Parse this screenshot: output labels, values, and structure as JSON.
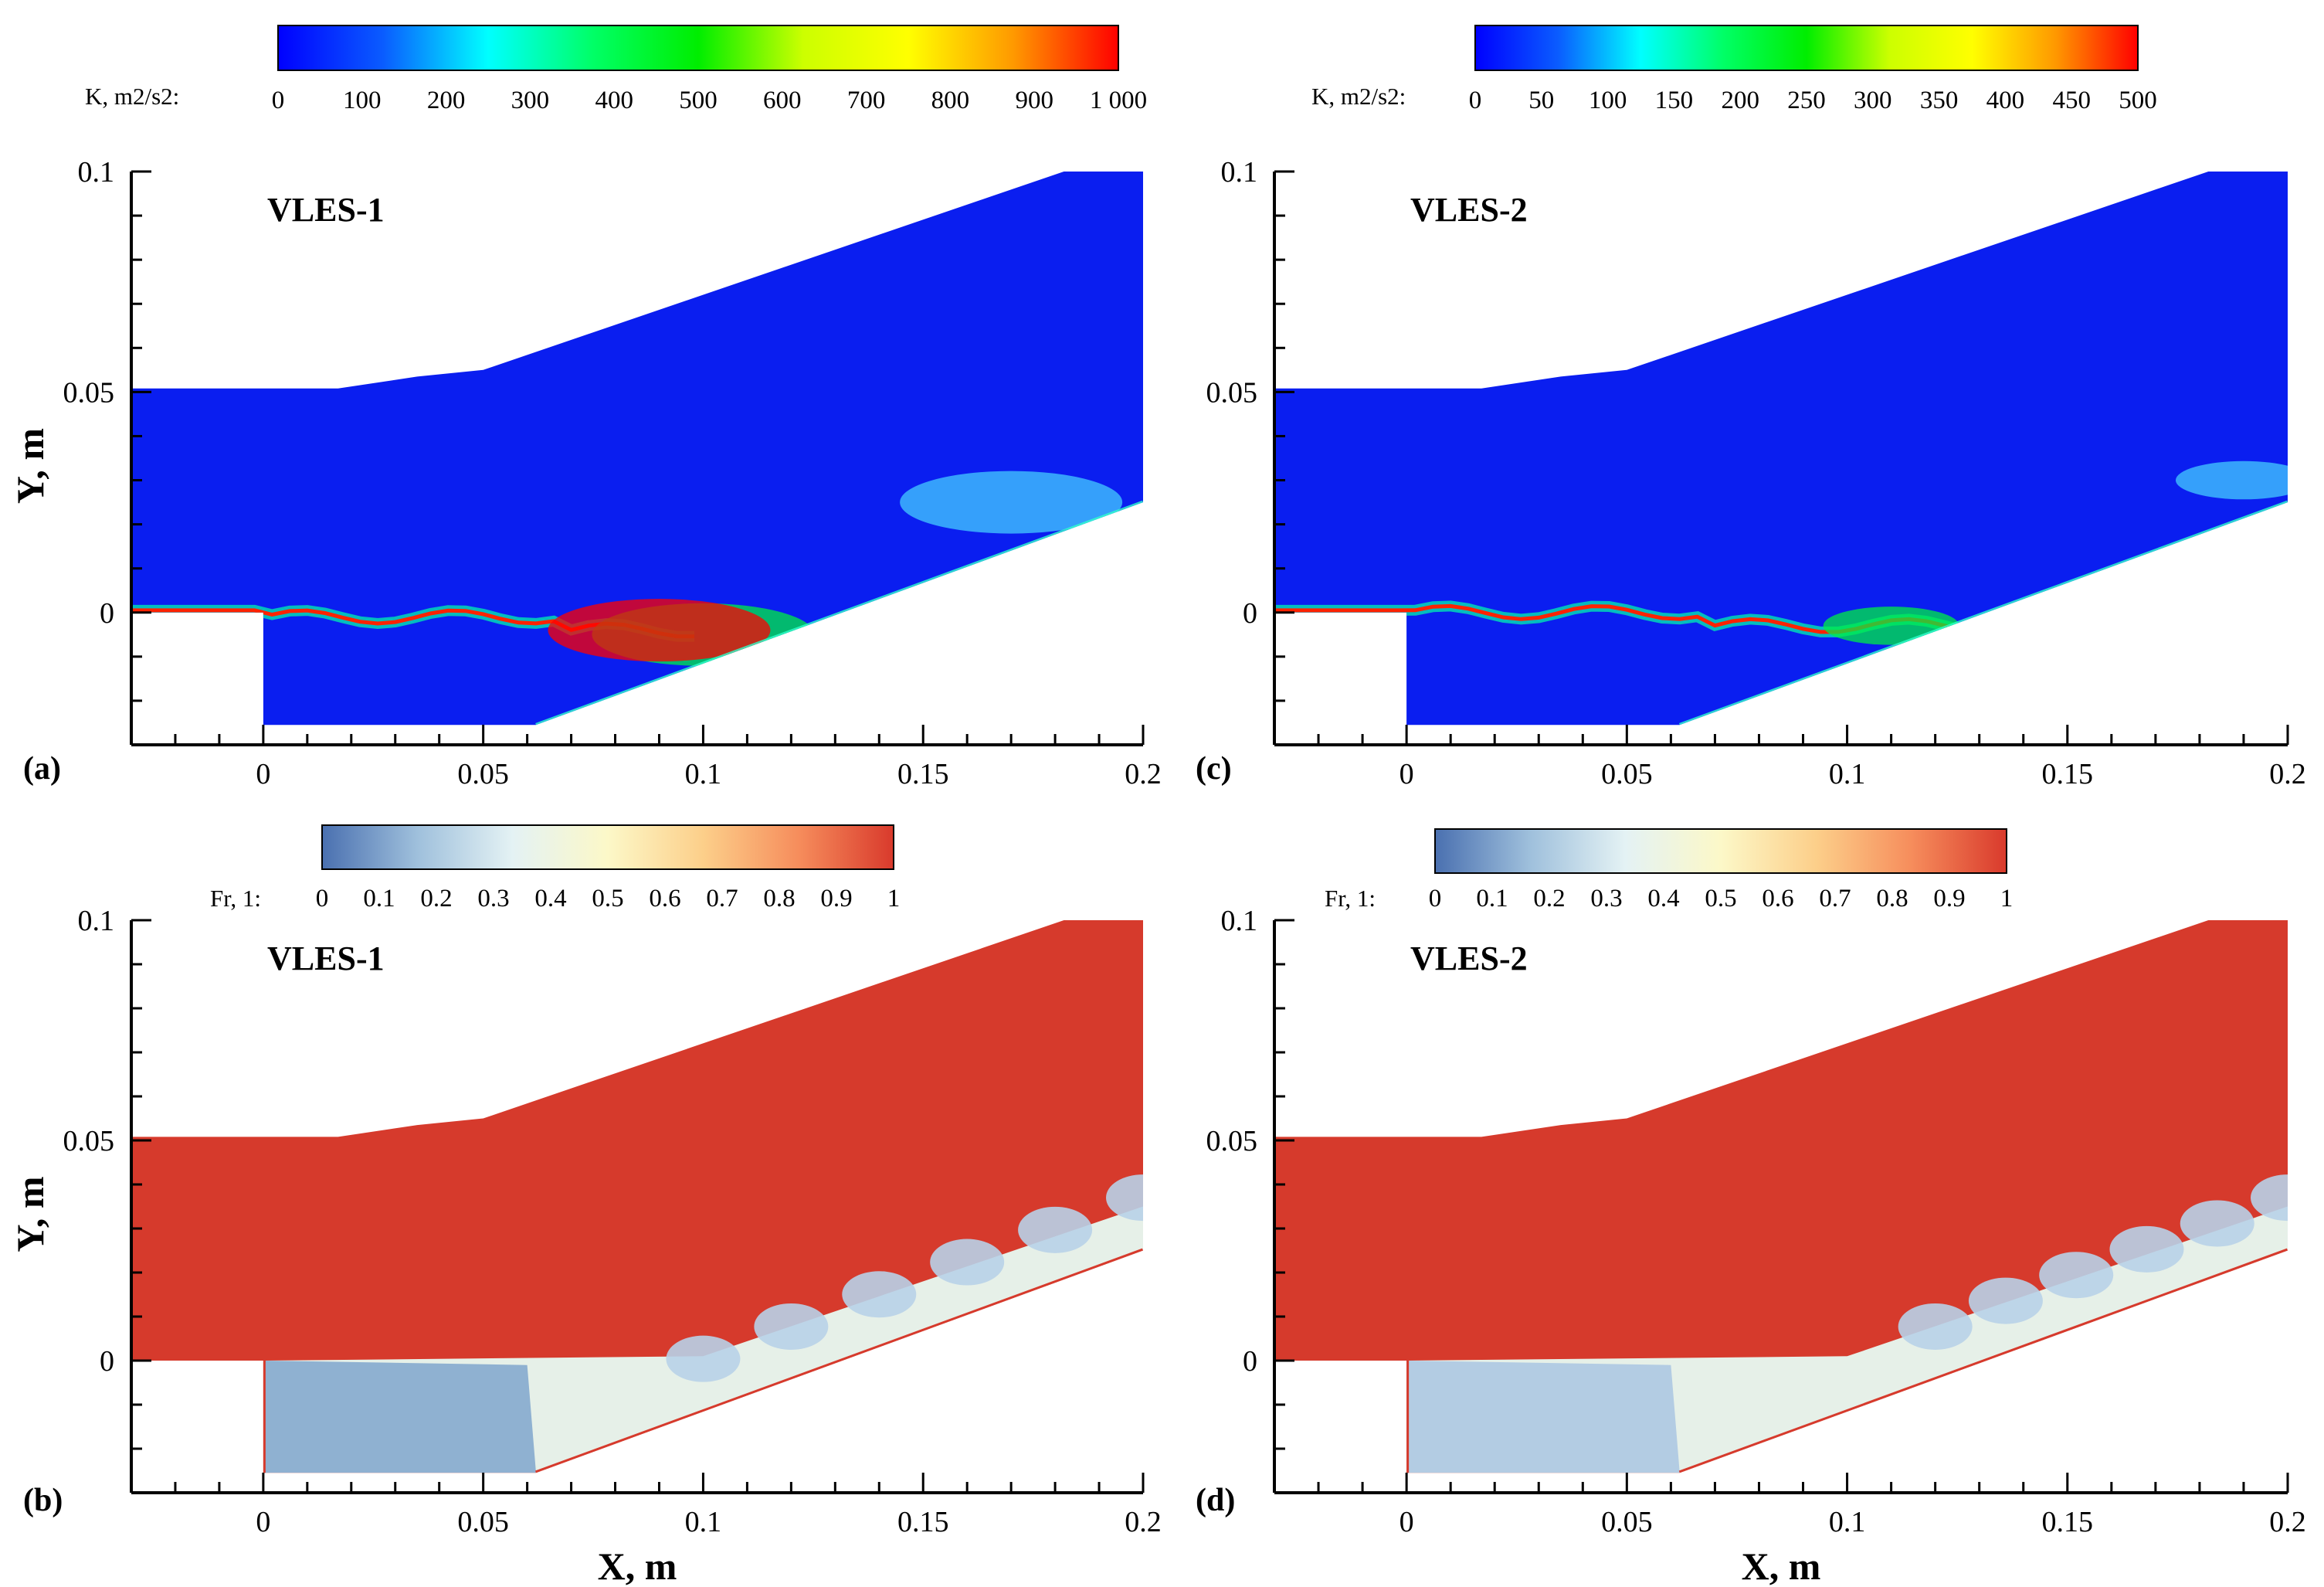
{
  "colors": {
    "background": "#ffffff",
    "axis": "#000000",
    "wall": "#ffffff",
    "k_background": "#0a1ef0",
    "fr_background": "#d63a2c"
  },
  "colorbars": {
    "k_left": {
      "title": "K, m2/s2:",
      "ticks": [
        "0",
        "100",
        "200",
        "300",
        "400",
        "500",
        "600",
        "700",
        "800",
        "900",
        "1 000"
      ],
      "stops": [
        "#0000ff",
        "#0a5cff",
        "#00ffff",
        "#00ff66",
        "#00ee00",
        "#ccff00",
        "#ffff00",
        "#ff9900",
        "#ff0000"
      ]
    },
    "k_right": {
      "title": "K, m2/s2:",
      "ticks": [
        "0",
        "50",
        "100",
        "150",
        "200",
        "250",
        "300",
        "350",
        "400",
        "450",
        "500"
      ],
      "stops": [
        "#0000ff",
        "#0a5cff",
        "#00ffff",
        "#00ff66",
        "#00ee00",
        "#ccff00",
        "#ffff00",
        "#ff9900",
        "#ff0000"
      ]
    },
    "fr_left": {
      "title": "Fr, 1:",
      "ticks": [
        "0",
        "0.1",
        "0.2",
        "0.3",
        "0.4",
        "0.5",
        "0.6",
        "0.7",
        "0.8",
        "0.9",
        "1"
      ],
      "stops": [
        "#4a70b0",
        "#9fc0dc",
        "#e4f2f4",
        "#fcf8c8",
        "#fccf8a",
        "#f68d5c",
        "#d93a2c"
      ]
    },
    "fr_right": {
      "title": "Fr, 1:",
      "ticks": [
        "0",
        "0.1",
        "0.2",
        "0.3",
        "0.4",
        "0.5",
        "0.6",
        "0.7",
        "0.8",
        "0.9",
        "1"
      ],
      "stops": [
        "#4a70b0",
        "#9fc0dc",
        "#e4f2f4",
        "#fcf8c8",
        "#fccf8a",
        "#f68d5c",
        "#d93a2c"
      ]
    }
  },
  "chart_data": [
    {
      "id": "a",
      "letter": "(a)",
      "type": "heatmap",
      "title": "VLES-1",
      "field": "K, m2/s2",
      "colorbar": "k_left",
      "xlim": [
        -0.03,
        0.2
      ],
      "ylim": [
        -0.03,
        0.1
      ],
      "xticks": [
        "0",
        "0.05",
        "0.1",
        "0.15",
        "0.2"
      ],
      "yticks": [
        "0",
        "0.05",
        "0.1"
      ],
      "xlabel": "",
      "ylabel": "Y, m",
      "features": [
        {
          "kind": "shear-layer",
          "x": [
            0.0,
            0.1
          ],
          "y": -0.001,
          "color": "#ff2200"
        },
        {
          "kind": "blob",
          "x": 0.1,
          "y": -0.005,
          "color": "#00ee44"
        },
        {
          "kind": "blob",
          "x": 0.09,
          "y": -0.004,
          "color": "#ff0000"
        },
        {
          "kind": "blob",
          "x": 0.17,
          "y": 0.025,
          "color": "#44ccff"
        }
      ]
    },
    {
      "id": "b",
      "letter": "(b)",
      "type": "heatmap",
      "title": "VLES-1",
      "field": "Fr, 1",
      "colorbar": "fr_left",
      "xlim": [
        -0.03,
        0.2
      ],
      "ylim": [
        -0.03,
        0.1
      ],
      "xticks": [
        "0",
        "0.05",
        "0.1",
        "0.15",
        "0.2"
      ],
      "yticks": [
        "0",
        "0.05",
        "0.1"
      ],
      "xlabel": "X, m",
      "ylabel": "Y, m",
      "features": [
        {
          "kind": "cavity",
          "x": [
            0.0,
            0.06
          ],
          "color": "#7fa6cc"
        },
        {
          "kind": "vortices",
          "x": [
            0.1,
            0.2
          ],
          "color": "#b8d2e8"
        }
      ]
    },
    {
      "id": "c",
      "letter": "(c)",
      "type": "heatmap",
      "title": "VLES-2",
      "field": "K, m2/s2",
      "colorbar": "k_right",
      "xlim": [
        -0.03,
        0.2
      ],
      "ylim": [
        -0.03,
        0.1
      ],
      "xticks": [
        "0",
        "0.05",
        "0.1",
        "0.15",
        "0.2"
      ],
      "yticks": [
        "0",
        "0.05",
        "0.1"
      ],
      "xlabel": "",
      "ylabel": "",
      "features": [
        {
          "kind": "shear-layer",
          "x": [
            0.0,
            0.13
          ],
          "y": 0.0,
          "color": "#ff2200"
        },
        {
          "kind": "blob",
          "x": 0.11,
          "y": -0.003,
          "color": "#00ee44"
        },
        {
          "kind": "blob",
          "x": 0.19,
          "y": 0.03,
          "color": "#44ccff"
        }
      ]
    },
    {
      "id": "d",
      "letter": "(d)",
      "type": "heatmap",
      "title": "VLES-2",
      "field": "Fr, 1",
      "colorbar": "fr_right",
      "xlim": [
        -0.03,
        0.2
      ],
      "ylim": [
        -0.03,
        0.1
      ],
      "xticks": [
        "0",
        "0.05",
        "0.1",
        "0.15",
        "0.2"
      ],
      "yticks": [
        "0",
        "0.05",
        "0.1"
      ],
      "xlabel": "X, m",
      "ylabel": "",
      "features": [
        {
          "kind": "cavity",
          "x": [
            0.0,
            0.06
          ],
          "color": "#a9c6e2"
        },
        {
          "kind": "vortices",
          "x": [
            0.12,
            0.2
          ],
          "color": "#b8d2e8"
        }
      ]
    }
  ]
}
